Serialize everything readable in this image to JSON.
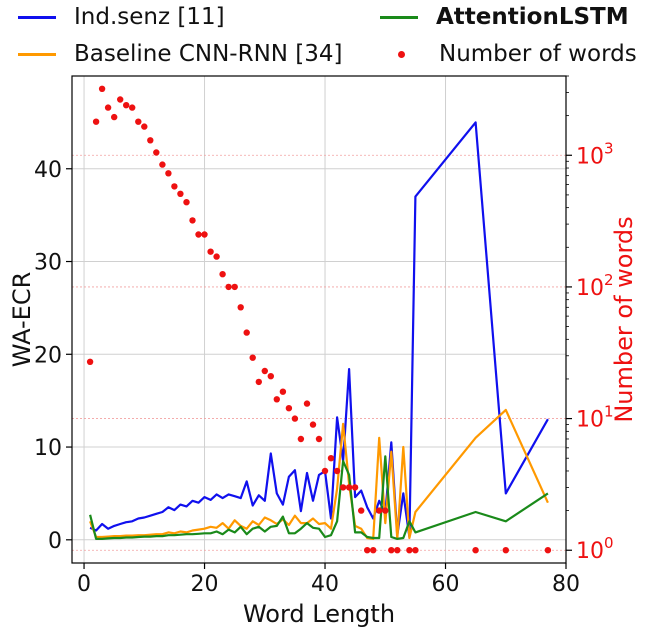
{
  "chart_data": {
    "type": "line",
    "xlabel": "Word Length",
    "ylabel": "WA-ECR",
    "ylabel_right": "Number of words",
    "xlim": [
      -2,
      80
    ],
    "ylim": [
      -2.5,
      50
    ],
    "xticks": [
      0,
      20,
      40,
      60,
      80
    ],
    "yticks": [
      0,
      10,
      20,
      30,
      40
    ],
    "y2_scale": "log",
    "y2lim": [
      0.8,
      4000
    ],
    "y2ticks": [
      {
        "value": 1,
        "base": "10",
        "exp": "0"
      },
      {
        "value": 10,
        "base": "10",
        "exp": "1"
      },
      {
        "value": 100,
        "base": "10",
        "exp": "2"
      },
      {
        "value": 1000,
        "base": "10",
        "exp": "3"
      }
    ],
    "grid": true,
    "legend_position": "top",
    "series": [
      {
        "name": "Ind.senz [11]",
        "color": "#1010ee",
        "axis": "left",
        "x": [
          1,
          2,
          3,
          4,
          5,
          6,
          7,
          8,
          9,
          10,
          11,
          12,
          13,
          14,
          15,
          16,
          17,
          18,
          19,
          20,
          21,
          22,
          23,
          24,
          25,
          26,
          27,
          28,
          29,
          30,
          31,
          32,
          33,
          34,
          35,
          36,
          37,
          38,
          39,
          40,
          41,
          42,
          43,
          44,
          45,
          46,
          47,
          48,
          49,
          50,
          51,
          52,
          53,
          54,
          55,
          65,
          70,
          77
        ],
        "values": [
          1.3,
          1.0,
          1.7,
          1.2,
          1.5,
          1.7,
          1.9,
          2.0,
          2.3,
          2.4,
          2.6,
          2.8,
          3.0,
          3.5,
          3.2,
          3.8,
          3.6,
          4.2,
          4.0,
          4.6,
          4.3,
          4.9,
          4.5,
          4.9,
          4.7,
          4.5,
          6.3,
          3.7,
          4.8,
          4.2,
          9.3,
          5.0,
          3.8,
          6.8,
          7.5,
          3.1,
          7.2,
          4.2,
          7.0,
          7.4,
          2.3,
          13.2,
          8.5,
          18.4,
          4.6,
          5.3,
          3.5,
          2.3,
          4.2,
          2.8,
          10.5,
          0.5,
          5.0,
          0.3,
          37.0,
          45.0,
          5.0,
          13.0
        ]
      },
      {
        "name": "Baseline CNN-RNN [34]",
        "color": "#ff9900",
        "axis": "left",
        "x": [
          1,
          2,
          3,
          4,
          5,
          6,
          7,
          8,
          9,
          10,
          11,
          12,
          13,
          14,
          15,
          16,
          17,
          18,
          19,
          20,
          21,
          22,
          23,
          24,
          25,
          26,
          27,
          28,
          29,
          30,
          31,
          32,
          33,
          34,
          35,
          36,
          37,
          38,
          39,
          40,
          41,
          42,
          43,
          44,
          45,
          46,
          47,
          48,
          49,
          50,
          51,
          52,
          53,
          54,
          55,
          65,
          70,
          77
        ],
        "values": [
          2.0,
          0.3,
          0.3,
          0.35,
          0.4,
          0.4,
          0.45,
          0.45,
          0.5,
          0.5,
          0.55,
          0.6,
          0.6,
          0.8,
          0.7,
          0.9,
          0.8,
          1.0,
          1.1,
          1.2,
          1.4,
          1.3,
          1.8,
          1.2,
          2.1,
          1.5,
          1.2,
          2.0,
          1.6,
          2.4,
          2.1,
          1.7,
          2.2,
          1.6,
          2.6,
          1.8,
          1.8,
          2.3,
          1.7,
          1.8,
          1.2,
          5.5,
          12.5,
          6.0,
          1.5,
          1.2,
          0.2,
          0.1,
          11.0,
          1.8,
          9.5,
          0.1,
          10.0,
          0.2,
          3.0,
          11.0,
          14.0,
          4.0
        ]
      },
      {
        "name": "AttentionLSTM",
        "color": "#1a8a1a",
        "axis": "left",
        "x": [
          1,
          2,
          3,
          4,
          5,
          6,
          7,
          8,
          9,
          10,
          11,
          12,
          13,
          14,
          15,
          16,
          17,
          18,
          19,
          20,
          21,
          22,
          23,
          24,
          25,
          26,
          27,
          28,
          29,
          30,
          31,
          32,
          33,
          34,
          35,
          36,
          37,
          38,
          39,
          40,
          41,
          42,
          43,
          44,
          45,
          46,
          47,
          48,
          49,
          50,
          51,
          52,
          53,
          54,
          55,
          65,
          70,
          77
        ],
        "values": [
          2.7,
          0.1,
          0.1,
          0.15,
          0.2,
          0.2,
          0.25,
          0.25,
          0.3,
          0.35,
          0.35,
          0.4,
          0.4,
          0.5,
          0.5,
          0.55,
          0.6,
          0.6,
          0.65,
          0.7,
          0.7,
          0.9,
          0.6,
          1.1,
          0.8,
          1.4,
          0.6,
          1.2,
          1.4,
          0.9,
          1.4,
          1.5,
          2.5,
          0.7,
          0.7,
          1.2,
          1.8,
          1.3,
          1.2,
          0.3,
          0.5,
          2.0,
          8.5,
          7.0,
          0.8,
          0.8,
          0.3,
          0.2,
          0.2,
          9.0,
          0.3,
          0.1,
          0.2,
          2.0,
          0.8,
          3.0,
          2.0,
          5.0
        ]
      }
    ],
    "scatter": {
      "name": "Number of words",
      "color": "#ee1111",
      "axis": "right",
      "x": [
        1,
        2,
        3,
        4,
        5,
        6,
        7,
        8,
        9,
        10,
        11,
        12,
        13,
        14,
        15,
        16,
        17,
        18,
        19,
        20,
        21,
        22,
        23,
        24,
        25,
        26,
        27,
        28,
        29,
        30,
        31,
        32,
        33,
        34,
        35,
        36,
        37,
        38,
        39,
        40,
        41,
        42,
        43,
        44,
        45,
        46,
        47,
        48,
        49,
        50,
        51,
        52,
        54,
        55,
        65,
        70,
        77
      ],
      "values": [
        27,
        1800,
        3200,
        2300,
        1950,
        2650,
        2400,
        2300,
        1800,
        1650,
        1300,
        1050,
        850,
        730,
        580,
        510,
        440,
        320,
        250,
        250,
        185,
        170,
        125,
        100,
        100,
        70,
        45,
        29,
        19,
        23,
        21,
        14,
        16,
        12,
        10,
        7,
        13,
        9,
        7,
        4,
        5,
        4,
        3,
        3,
        3,
        2,
        1,
        1,
        2,
        2,
        1,
        1,
        1,
        1,
        1,
        1,
        1
      ]
    }
  }
}
